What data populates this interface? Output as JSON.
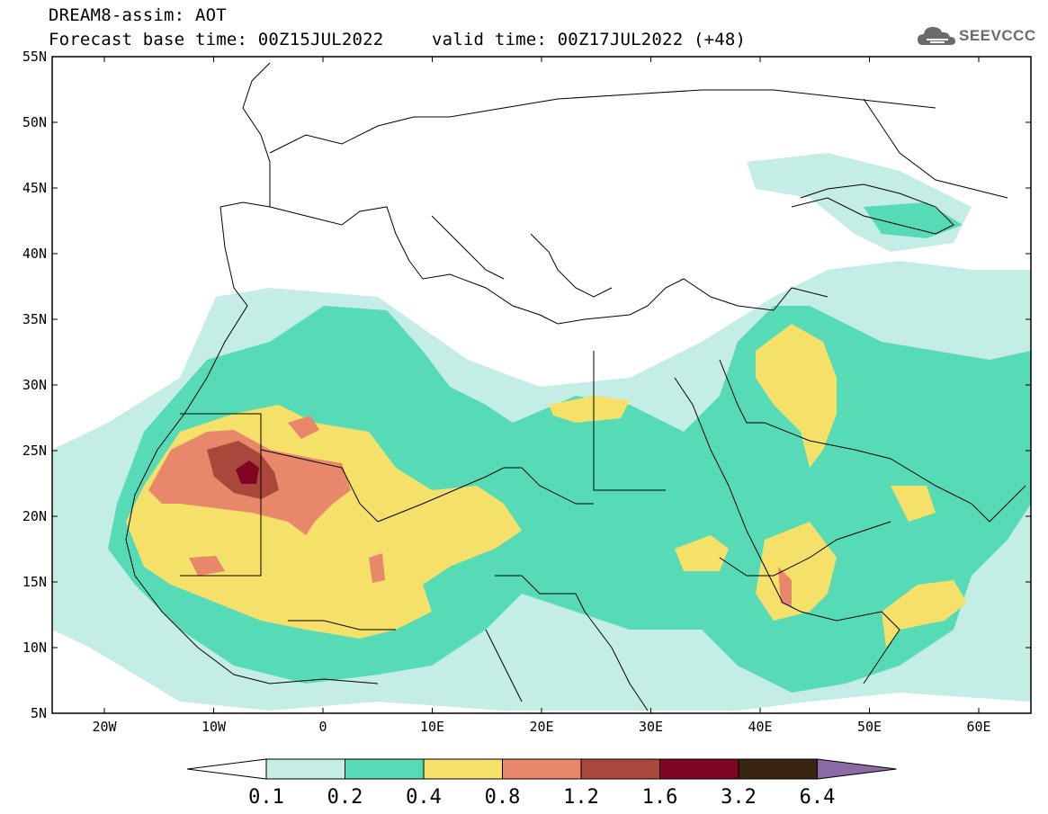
{
  "header": {
    "title": "DREAM8-assim: AOT",
    "base_time": "Forecast base time: 00Z15JUL2022",
    "valid_time": "valid time: 00Z17JUL2022 (+48)"
  },
  "logo": {
    "text": "SEEVCCC",
    "icon": "cloud-icon"
  },
  "map": {
    "lat_ticks": [
      "55N",
      "50N",
      "45N",
      "40N",
      "35N",
      "30N",
      "25N",
      "20N",
      "15N",
      "10N",
      "5N"
    ],
    "lon_ticks": [
      "20W",
      "10W",
      "0",
      "10E",
      "20E",
      "30E",
      "40E",
      "50E",
      "60E"
    ]
  },
  "colorbar": {
    "labels": [
      "0.1",
      "0.2",
      "0.4",
      "0.8",
      "1.2",
      "1.6",
      "3.2",
      "6.4"
    ],
    "colors": [
      "#ffffff",
      "#c4ede6",
      "#56dbb6",
      "#f5e06a",
      "#e9876a",
      "#a9473a",
      "#7f0522",
      "#3a2510",
      "#8b6aa5"
    ]
  }
}
